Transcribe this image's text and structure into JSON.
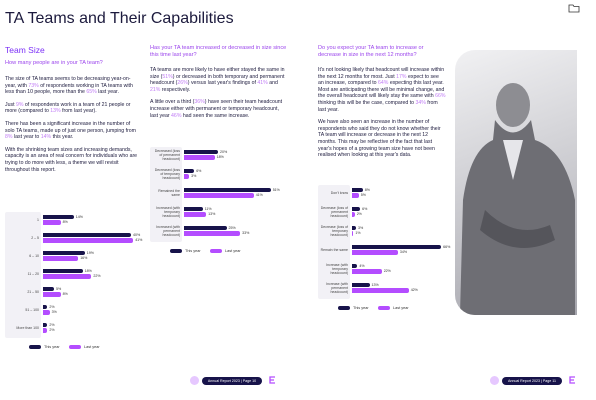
{
  "left_page": {
    "title": "TA Teams and Their Capabilities",
    "section": "Team Size",
    "question": "How many people are in your TA team?",
    "paragraphs": [
      [
        "The size of TA teams seems to be decreasing year-on-year, with ",
        "73%",
        " of respondents working in TA teams with less than 10 people, more than the ",
        "65%",
        " last year."
      ],
      [
        "Just ",
        "9%",
        " of respondents work in a team of 21 people or more (compared to ",
        "13%",
        " from last year)."
      ],
      [
        "There has been a significant increase in the number of solo TA teams, made up of just one person, jumping from ",
        "8%",
        " last year to ",
        "14%",
        " this year."
      ],
      [
        "With the shrinking team sizes and increasing demands, capacity is an area of real concern for individuals who are trying to do more with less, a theme we will revisit throughout this report."
      ]
    ],
    "footer": "Annual Report 2023 | Page 10"
  },
  "middle_column": {
    "question": "Has your TA team increased or decreased in size since this time last year?",
    "paragraphs": [
      [
        "TA teams are more likely to have either stayed the same in size (",
        "51%",
        ") or decreased in both temporary and permanent headcount (",
        "26%",
        ") versus last year's findings of ",
        "41%",
        " and ",
        "21%",
        " respectively."
      ],
      [
        "A little over a third (",
        "36%",
        ") have seen their team headcount increase either with permanent or temporary headcount, last year ",
        "46%",
        " had seen the same increase."
      ]
    ]
  },
  "right_page": {
    "question": "Do you expect your TA team to increase or decrease in size in the next 12 months?",
    "paragraphs": [
      [
        "It's not looking likely that headcount will increase within the next 12 months for most. Just ",
        "17%",
        " expect to see an increase, compared to ",
        "64%",
        " expecting this last year. Most are anticipating there will be minimal change, and the overall headcount will likely stay the same with ",
        "66%",
        " thinking this will be the case, compared to ",
        "34%",
        " from last year."
      ],
      [
        "We have also seen an increase in the number of respondents who said they do not know whether their TA team will increase or decrease in the next 12 months. This may be reflective of the fact that last year's hopes of a growing team size have not been realised when looking at this year's data."
      ]
    ],
    "footer": "Annual Report 2023 | Page 11"
  },
  "chart_data": [
    {
      "type": "bar",
      "orientation": "horizontal",
      "categories": [
        "1",
        "2 – 5",
        "6 – 10",
        "11 – 20",
        "21 – 50",
        "51 – 100",
        "More than 100"
      ],
      "series": [
        {
          "name": "This year",
          "color": "#17134a",
          "values": [
            14,
            40,
            19,
            18,
            5,
            2,
            2
          ],
          "value_labels": [
            "14%",
            "40%",
            "19%",
            "18%",
            "5%",
            "2%",
            "2%"
          ]
        },
        {
          "name": "Last year",
          "color": "#b44dff",
          "values": [
            8,
            41,
            16,
            22,
            8,
            3,
            2
          ],
          "value_labels": [
            "8%",
            "41%",
            "16%",
            "22%",
            "8%",
            "3%",
            "2%"
          ]
        }
      ]
    },
    {
      "type": "bar",
      "orientation": "horizontal",
      "categories": [
        "Decreased (loss of permanent headcount)",
        "Decreased (loss of temporary headcount)",
        "Remained the same",
        "Increased (with temporary headcount)",
        "Increased (with permanent headcount)"
      ],
      "series": [
        {
          "name": "This year",
          "color": "#17134a",
          "values": [
            20,
            6,
            51,
            11,
            25
          ],
          "value_labels": [
            "20%",
            "6%",
            "51%",
            "11%",
            "25%"
          ]
        },
        {
          "name": "Last year",
          "color": "#b44dff",
          "values": [
            18,
            3,
            41,
            13,
            33
          ],
          "value_labels": [
            "18%",
            "3%",
            "41%",
            "13%",
            "33%"
          ]
        }
      ]
    },
    {
      "type": "bar",
      "orientation": "horizontal",
      "categories": [
        "Don't know",
        "Decrease (loss of permanent headcount)",
        "Decrease (loss of temporary headcount)",
        "Remain the same",
        "Increase (with temporary headcount)",
        "Increase (with permanent headcount)"
      ],
      "series": [
        {
          "name": "This year",
          "color": "#17134a",
          "values": [
            8,
            6,
            3,
            66,
            4,
            13
          ],
          "value_labels": [
            "8%",
            "6%",
            "3%",
            "66%",
            "4%",
            "13%"
          ]
        },
        {
          "name": "Last year",
          "color": "#b44dff",
          "values": [
            5,
            2,
            1,
            34,
            22,
            42
          ],
          "value_labels": [
            "5%",
            "2%",
            "1%",
            "34%",
            "22%",
            "42%"
          ]
        }
      ]
    }
  ]
}
